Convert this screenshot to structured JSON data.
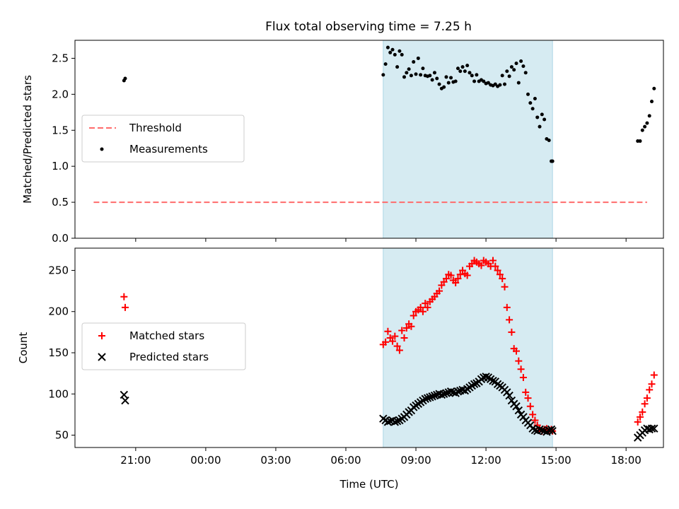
{
  "figure": {
    "title": "Flux total observing time = 7.25 h"
  },
  "chart_data": [
    {
      "type": "scatter",
      "title": "Flux total observing time = 7.25 h",
      "xlabel": "",
      "ylabel": "Matched/Predicted stars",
      "x_unit": "hours since 20:00 UTC of first day",
      "xlim": [
        -1.6,
        23.6
      ],
      "ylim": [
        0,
        2.75
      ],
      "yticks": [
        0,
        0.5,
        1.0,
        1.5,
        2.0,
        2.5
      ],
      "ytick_labels": [
        "0.0",
        "0.5",
        "1.0",
        "1.5",
        "2.0",
        "2.5"
      ],
      "shaded_region": [
        11.6,
        18.85
      ],
      "shaded_color": "#add8e6",
      "legend": {
        "placement": "center-left",
        "entries": [
          "Threshold",
          "Measurements"
        ]
      },
      "series": [
        {
          "name": "Threshold",
          "kind": "line",
          "style": "dashed",
          "color": "#ff6b6b",
          "x": [
            -0.8,
            22.9
          ],
          "y": [
            0.5,
            0.5
          ]
        },
        {
          "name": "Measurements",
          "kind": "scatter",
          "color": "#000000",
          "x": [
            0.5,
            0.55,
            11.6,
            11.7,
            11.8,
            11.9,
            12.0,
            12.1,
            12.2,
            12.3,
            12.4,
            12.5,
            12.6,
            12.7,
            12.8,
            12.9,
            13.0,
            13.1,
            13.2,
            13.3,
            13.4,
            13.5,
            13.6,
            13.7,
            13.8,
            13.9,
            14.0,
            14.1,
            14.2,
            14.3,
            14.4,
            14.5,
            14.6,
            14.7,
            14.8,
            14.9,
            15.0,
            15.1,
            15.2,
            15.3,
            15.4,
            15.5,
            15.6,
            15.7,
            15.8,
            15.9,
            16.0,
            16.1,
            16.2,
            16.3,
            16.4,
            16.5,
            16.6,
            16.7,
            16.8,
            16.9,
            17.0,
            17.1,
            17.2,
            17.3,
            17.4,
            17.5,
            17.6,
            17.7,
            17.8,
            17.9,
            18.0,
            18.1,
            18.2,
            18.3,
            18.4,
            18.5,
            18.6,
            18.7,
            18.8,
            18.85,
            22.5,
            22.6,
            22.7,
            22.8,
            22.9,
            23.0,
            23.1,
            23.2
          ],
          "y": [
            2.19,
            2.22,
            2.27,
            2.42,
            2.65,
            2.58,
            2.62,
            2.55,
            2.38,
            2.6,
            2.55,
            2.24,
            2.3,
            2.35,
            2.26,
            2.45,
            2.28,
            2.5,
            2.27,
            2.36,
            2.26,
            2.25,
            2.26,
            2.2,
            2.3,
            2.22,
            2.14,
            2.08,
            2.1,
            2.24,
            2.16,
            2.23,
            2.17,
            2.18,
            2.36,
            2.32,
            2.38,
            2.32,
            2.4,
            2.3,
            2.26,
            2.18,
            2.27,
            2.18,
            2.2,
            2.18,
            2.15,
            2.16,
            2.13,
            2.12,
            2.14,
            2.11,
            2.13,
            2.26,
            2.14,
            2.32,
            2.25,
            2.38,
            2.34,
            2.43,
            2.16,
            2.46,
            2.39,
            2.3,
            2.0,
            1.88,
            1.8,
            1.94,
            1.68,
            1.55,
            1.72,
            1.65,
            1.38,
            1.36,
            1.07,
            1.07,
            1.35,
            1.35,
            1.5,
            1.55,
            1.6,
            1.7,
            1.9,
            2.08
          ]
        }
      ]
    },
    {
      "type": "scatter",
      "title": "",
      "xlabel": "Time (UTC)",
      "ylabel": "Count",
      "x_unit": "hours since 20:00 UTC of first day",
      "xlim": [
        -1.6,
        23.6
      ],
      "ylim": [
        35,
        277
      ],
      "yticks": [
        50,
        100,
        150,
        200,
        250
      ],
      "ytick_labels": [
        "50",
        "100",
        "150",
        "200",
        "250"
      ],
      "xtick_positions": [
        1,
        4,
        7,
        10,
        13,
        16,
        19,
        22
      ],
      "xtick_labels": [
        "21:00",
        "00:00",
        "03:00",
        "06:00",
        "09:00",
        "12:00",
        "15:00",
        "18:00"
      ],
      "shaded_region": [
        11.6,
        18.85
      ],
      "shaded_color": "#add8e6",
      "legend": {
        "placement": "center-left",
        "entries": [
          "Matched stars",
          "Predicted stars"
        ]
      },
      "series": [
        {
          "name": "Matched stars",
          "kind": "scatter",
          "marker": "plus",
          "color": "#ff0000",
          "x": [
            0.5,
            0.55,
            11.6,
            11.7,
            11.8,
            11.9,
            12.0,
            12.1,
            12.2,
            12.3,
            12.4,
            12.5,
            12.6,
            12.7,
            12.8,
            12.9,
            13.0,
            13.1,
            13.2,
            13.3,
            13.4,
            13.5,
            13.6,
            13.7,
            13.8,
            13.9,
            14.0,
            14.1,
            14.2,
            14.3,
            14.4,
            14.5,
            14.6,
            14.7,
            14.8,
            14.9,
            15.0,
            15.1,
            15.2,
            15.3,
            15.4,
            15.5,
            15.6,
            15.7,
            15.8,
            15.9,
            16.0,
            16.1,
            16.2,
            16.3,
            16.4,
            16.5,
            16.6,
            16.7,
            16.8,
            16.9,
            17.0,
            17.1,
            17.2,
            17.3,
            17.4,
            17.5,
            17.6,
            17.7,
            17.8,
            17.9,
            18.0,
            18.1,
            18.2,
            18.3,
            18.4,
            18.5,
            18.6,
            18.7,
            18.8,
            18.85,
            22.5,
            22.6,
            22.7,
            22.8,
            22.9,
            23.0,
            23.1,
            23.2
          ],
          "y": [
            218,
            205,
            160,
            163,
            176,
            168,
            164,
            170,
            158,
            153,
            177,
            168,
            180,
            185,
            182,
            195,
            200,
            202,
            205,
            200,
            210,
            205,
            212,
            215,
            218,
            222,
            225,
            232,
            236,
            240,
            245,
            244,
            238,
            235,
            240,
            245,
            250,
            246,
            244,
            255,
            258,
            262,
            260,
            258,
            256,
            262,
            260,
            258,
            255,
            262,
            255,
            250,
            245,
            240,
            230,
            205,
            190,
            175,
            155,
            152,
            140,
            130,
            120,
            102,
            95,
            85,
            75,
            68,
            62,
            58,
            55,
            57,
            58,
            56,
            57,
            55,
            66,
            72,
            78,
            88,
            95,
            105,
            112,
            123
          ]
        },
        {
          "name": "Predicted stars",
          "kind": "scatter",
          "marker": "x",
          "color": "#000000",
          "x": [
            0.5,
            0.55,
            11.6,
            11.7,
            11.8,
            11.9,
            12.0,
            12.1,
            12.2,
            12.3,
            12.4,
            12.5,
            12.6,
            12.7,
            12.8,
            12.9,
            13.0,
            13.1,
            13.2,
            13.3,
            13.4,
            13.5,
            13.6,
            13.7,
            13.8,
            13.9,
            14.0,
            14.1,
            14.2,
            14.3,
            14.4,
            14.5,
            14.6,
            14.7,
            14.8,
            14.9,
            15.0,
            15.1,
            15.2,
            15.3,
            15.4,
            15.5,
            15.6,
            15.7,
            15.8,
            15.9,
            16.0,
            16.1,
            16.2,
            16.3,
            16.4,
            16.5,
            16.6,
            16.7,
            16.8,
            16.9,
            17.0,
            17.1,
            17.2,
            17.3,
            17.4,
            17.5,
            17.6,
            17.7,
            17.8,
            17.9,
            18.0,
            18.1,
            18.2,
            18.3,
            18.4,
            18.5,
            18.6,
            18.7,
            18.8,
            18.85,
            22.5,
            22.6,
            22.7,
            22.8,
            22.9,
            23.0,
            23.1,
            23.2
          ],
          "y": [
            99,
            92,
            70,
            68,
            66,
            67,
            68,
            66,
            67,
            68,
            70,
            72,
            75,
            78,
            80,
            84,
            86,
            88,
            90,
            92,
            94,
            95,
            96,
            97,
            98,
            99,
            100,
            99,
            100,
            101,
            102,
            103,
            102,
            101,
            103,
            104,
            105,
            104,
            106,
            108,
            110,
            112,
            113,
            115,
            118,
            120,
            121,
            120,
            118,
            116,
            115,
            112,
            110,
            108,
            105,
            102,
            98,
            92,
            88,
            85,
            80,
            75,
            72,
            68,
            65,
            62,
            58,
            56,
            55,
            57,
            56,
            55,
            54,
            56,
            57,
            55,
            47,
            50,
            53,
            56,
            58,
            57,
            58,
            58
          ]
        }
      ]
    }
  ]
}
